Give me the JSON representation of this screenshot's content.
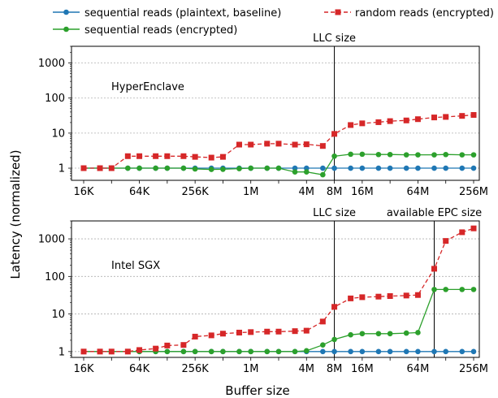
{
  "figure": {
    "ylabel": "Latency (normalized)",
    "xlabel": "Buffer size",
    "legend": [
      {
        "label": "sequential reads (plaintext, baseline)",
        "color": "#1f77b4",
        "marker": "circle",
        "style": "solid"
      },
      {
        "label": "random reads (encrypted)",
        "color": "#d62728",
        "marker": "square",
        "style": "dashed"
      },
      {
        "label": "sequential reads (encrypted)",
        "color": "#2ca02c",
        "marker": "circle",
        "style": "solid"
      }
    ],
    "x_ticks": [
      "16K",
      "64K",
      "256K",
      "1M",
      "4M",
      "8M",
      "16M",
      "64M",
      "256M"
    ],
    "y_ticks": [
      "1",
      "10",
      "100",
      "1000"
    ]
  },
  "chart_data": [
    {
      "type": "line",
      "title": "HyperEnclave",
      "xscale": "log2",
      "yscale": "log",
      "x_unit_labels": [
        "16K",
        "32K",
        "64K",
        "128K",
        "256K",
        "512K",
        "1M",
        "2M",
        "4M",
        "8M",
        "16M",
        "32M",
        "64M",
        "128M",
        "256M"
      ],
      "ylim": [
        0.45,
        3000
      ],
      "grid": "horizontal dotted",
      "vlines": [
        {
          "x": "8M",
          "label": "LLC size"
        }
      ],
      "series": [
        {
          "name": "sequential reads (plaintext, baseline)",
          "x": [
            "16K",
            "24K",
            "32K",
            "48K",
            "64K",
            "96K",
            "128K",
            "192K",
            "256K",
            "384K",
            "512K",
            "768K",
            "1M",
            "1.5M",
            "2M",
            "3M",
            "4M",
            "6M",
            "8M",
            "12M",
            "16M",
            "24M",
            "32M",
            "48M",
            "64M",
            "96M",
            "128M",
            "192M",
            "256M"
          ],
          "values": [
            1,
            1,
            1,
            1,
            1,
            1,
            1,
            1,
            1,
            1,
            1,
            1,
            1,
            1,
            1,
            1,
            1,
            1,
            1,
            1,
            1,
            1,
            1,
            1,
            1,
            1,
            1,
            1,
            1
          ]
        },
        {
          "name": "sequential reads (encrypted)",
          "x": [
            "16K",
            "24K",
            "32K",
            "48K",
            "64K",
            "96K",
            "128K",
            "192K",
            "256K",
            "384K",
            "512K",
            "768K",
            "1M",
            "1.5M",
            "2M",
            "3M",
            "4M",
            "6M",
            "8M",
            "12M",
            "16M",
            "24M",
            "32M",
            "48M",
            "64M",
            "96M",
            "128M",
            "192M",
            "256M"
          ],
          "values": [
            1,
            1,
            1,
            1,
            1,
            1,
            1,
            1,
            0.95,
            0.92,
            0.93,
            0.97,
            1,
            1,
            1,
            0.78,
            0.78,
            0.65,
            2.2,
            2.5,
            2.5,
            2.45,
            2.45,
            2.4,
            2.4,
            2.4,
            2.45,
            2.4,
            2.4
          ]
        },
        {
          "name": "random reads (encrypted)",
          "x": [
            "16K",
            "24K",
            "32K",
            "48K",
            "64K",
            "96K",
            "128K",
            "192K",
            "256K",
            "384K",
            "512K",
            "768K",
            "1M",
            "1.5M",
            "2M",
            "3M",
            "4M",
            "6M",
            "8M",
            "12M",
            "16M",
            "24M",
            "32M",
            "48M",
            "64M",
            "96M",
            "128M",
            "192M",
            "256M"
          ],
          "values": [
            1,
            1,
            1,
            2.2,
            2.2,
            2.2,
            2.2,
            2.2,
            2.1,
            2.0,
            2.1,
            4.7,
            4.7,
            5.0,
            5.0,
            4.7,
            4.8,
            4.3,
            9.5,
            17,
            19,
            20.5,
            22,
            23,
            25,
            28,
            29,
            31,
            33
          ]
        }
      ]
    },
    {
      "type": "line",
      "title": "Intel SGX",
      "xscale": "log2",
      "yscale": "log",
      "x_unit_labels": [
        "16K",
        "32K",
        "64K",
        "128K",
        "256K",
        "512K",
        "1M",
        "2M",
        "4M",
        "8M",
        "16M",
        "32M",
        "64M",
        "128M",
        "256M"
      ],
      "ylim": [
        0.7,
        3000
      ],
      "grid": "horizontal dotted",
      "vlines": [
        {
          "x": "8M",
          "label": "LLC size"
        },
        {
          "x": "96M",
          "label": "available EPC size"
        }
      ],
      "series": [
        {
          "name": "sequential reads (plaintext, baseline)",
          "x": [
            "16K",
            "24K",
            "32K",
            "48K",
            "64K",
            "96K",
            "128K",
            "192K",
            "256K",
            "384K",
            "512K",
            "768K",
            "1M",
            "1.5M",
            "2M",
            "3M",
            "4M",
            "6M",
            "8M",
            "12M",
            "16M",
            "24M",
            "32M",
            "48M",
            "64M",
            "96M",
            "128M",
            "192M",
            "256M"
          ],
          "values": [
            1,
            1,
            1,
            1,
            1,
            1,
            1,
            1,
            1,
            1,
            1,
            1,
            1,
            1,
            1,
            1,
            1,
            1,
            1,
            1,
            1,
            1,
            1,
            1,
            1,
            1,
            1,
            1,
            1
          ]
        },
        {
          "name": "sequential reads (encrypted)",
          "x": [
            "16K",
            "24K",
            "32K",
            "48K",
            "64K",
            "96K",
            "128K",
            "192K",
            "256K",
            "384K",
            "512K",
            "768K",
            "1M",
            "1.5M",
            "2M",
            "3M",
            "4M",
            "6M",
            "8M",
            "12M",
            "16M",
            "24M",
            "32M",
            "48M",
            "64M",
            "96M",
            "128M",
            "192M",
            "256M"
          ],
          "values": [
            1,
            1,
            1,
            1,
            1,
            1,
            1,
            1,
            1,
            1,
            1,
            1,
            1,
            1,
            1,
            1,
            1.05,
            1.5,
            2.1,
            2.8,
            3.0,
            3.0,
            3.0,
            3.1,
            3.2,
            45,
            45,
            45,
            45
          ]
        },
        {
          "name": "random reads (encrypted)",
          "x": [
            "16K",
            "24K",
            "32K",
            "48K",
            "64K",
            "96K",
            "128K",
            "192K",
            "256K",
            "384K",
            "512K",
            "768K",
            "1M",
            "1.5M",
            "2M",
            "3M",
            "4M",
            "6M",
            "8M",
            "12M",
            "16M",
            "24M",
            "32M",
            "48M",
            "64M",
            "96M",
            "128M",
            "192M",
            "256M"
          ],
          "values": [
            1,
            1,
            1,
            1,
            1.1,
            1.2,
            1.45,
            1.5,
            2.5,
            2.7,
            3.0,
            3.2,
            3.3,
            3.4,
            3.4,
            3.5,
            3.6,
            6.3,
            15.5,
            26,
            28,
            29,
            30,
            31,
            32,
            160,
            880,
            1500,
            1900
          ]
        }
      ]
    }
  ]
}
